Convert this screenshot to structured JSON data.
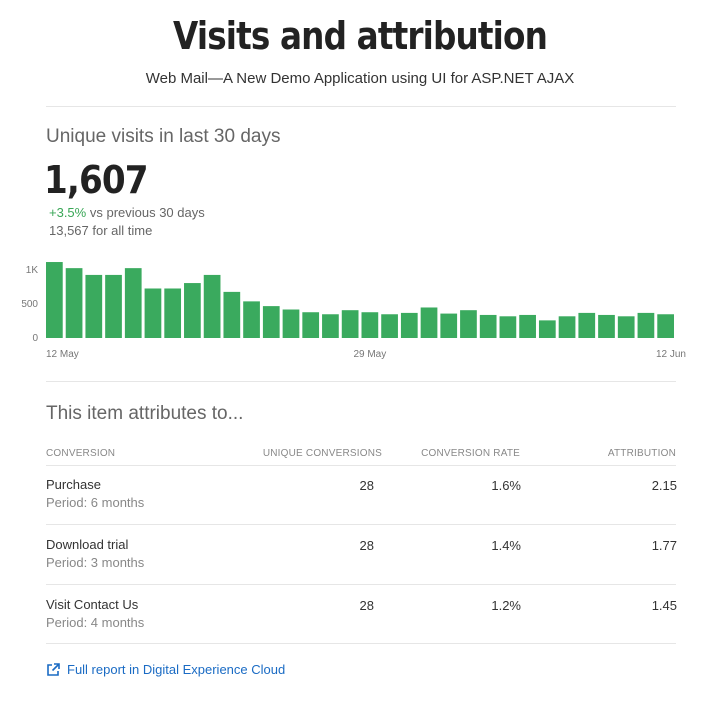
{
  "header": {
    "title": "Visits and attribution",
    "subtitle": "Web Mail—A New Demo Application using UI for ASP.NET AJAX"
  },
  "visits": {
    "section_title": "Unique visits in last 30 days",
    "count": "1,607",
    "change_pct": "+3.5%",
    "change_text": " vs previous 30 days",
    "all_time": "13,567 for all time"
  },
  "chart_data": {
    "type": "bar",
    "color": "#3aaa5e",
    "ylim": [
      0,
      1000
    ],
    "y_ticks": [
      {
        "label": "1K",
        "value": 1000
      },
      {
        "label": "500",
        "value": 500
      },
      {
        "label": "0",
        "value": 0
      }
    ],
    "x_tick_labels": [
      {
        "label": "12 May",
        "index": 0
      },
      {
        "label": "29 May",
        "index": 16
      },
      {
        "label": "12 Jun",
        "index": 31
      }
    ],
    "values": [
      1120,
      1030,
      930,
      930,
      1030,
      730,
      730,
      810,
      930,
      680,
      540,
      470,
      420,
      380,
      350,
      410,
      380,
      350,
      370,
      450,
      360,
      410,
      340,
      320,
      340,
      260,
      320,
      370,
      340,
      320,
      370,
      350
    ]
  },
  "attribution": {
    "section_title": "This item attributes to...",
    "columns": [
      "CONVERSION",
      "UNIQUE CONVERSIONS",
      "CONVERSION RATE",
      "ATTRIBUTION"
    ],
    "rows": [
      {
        "name": "Purchase",
        "period": "Period: 6 months",
        "unique": "28",
        "rate": "1.6%",
        "attribution": "2.15"
      },
      {
        "name": "Download trial",
        "period": "Period: 3 months",
        "unique": "28",
        "rate": "1.4%",
        "attribution": "1.77"
      },
      {
        "name": "Visit Contact Us",
        "period": "Period: 4 months",
        "unique": "28",
        "rate": "1.2%",
        "attribution": "1.45"
      }
    ]
  },
  "footer": {
    "link_text": "Full report in Digital Experience Cloud",
    "link_icon": "external-link-icon",
    "link_color": "#1a6bc4"
  }
}
